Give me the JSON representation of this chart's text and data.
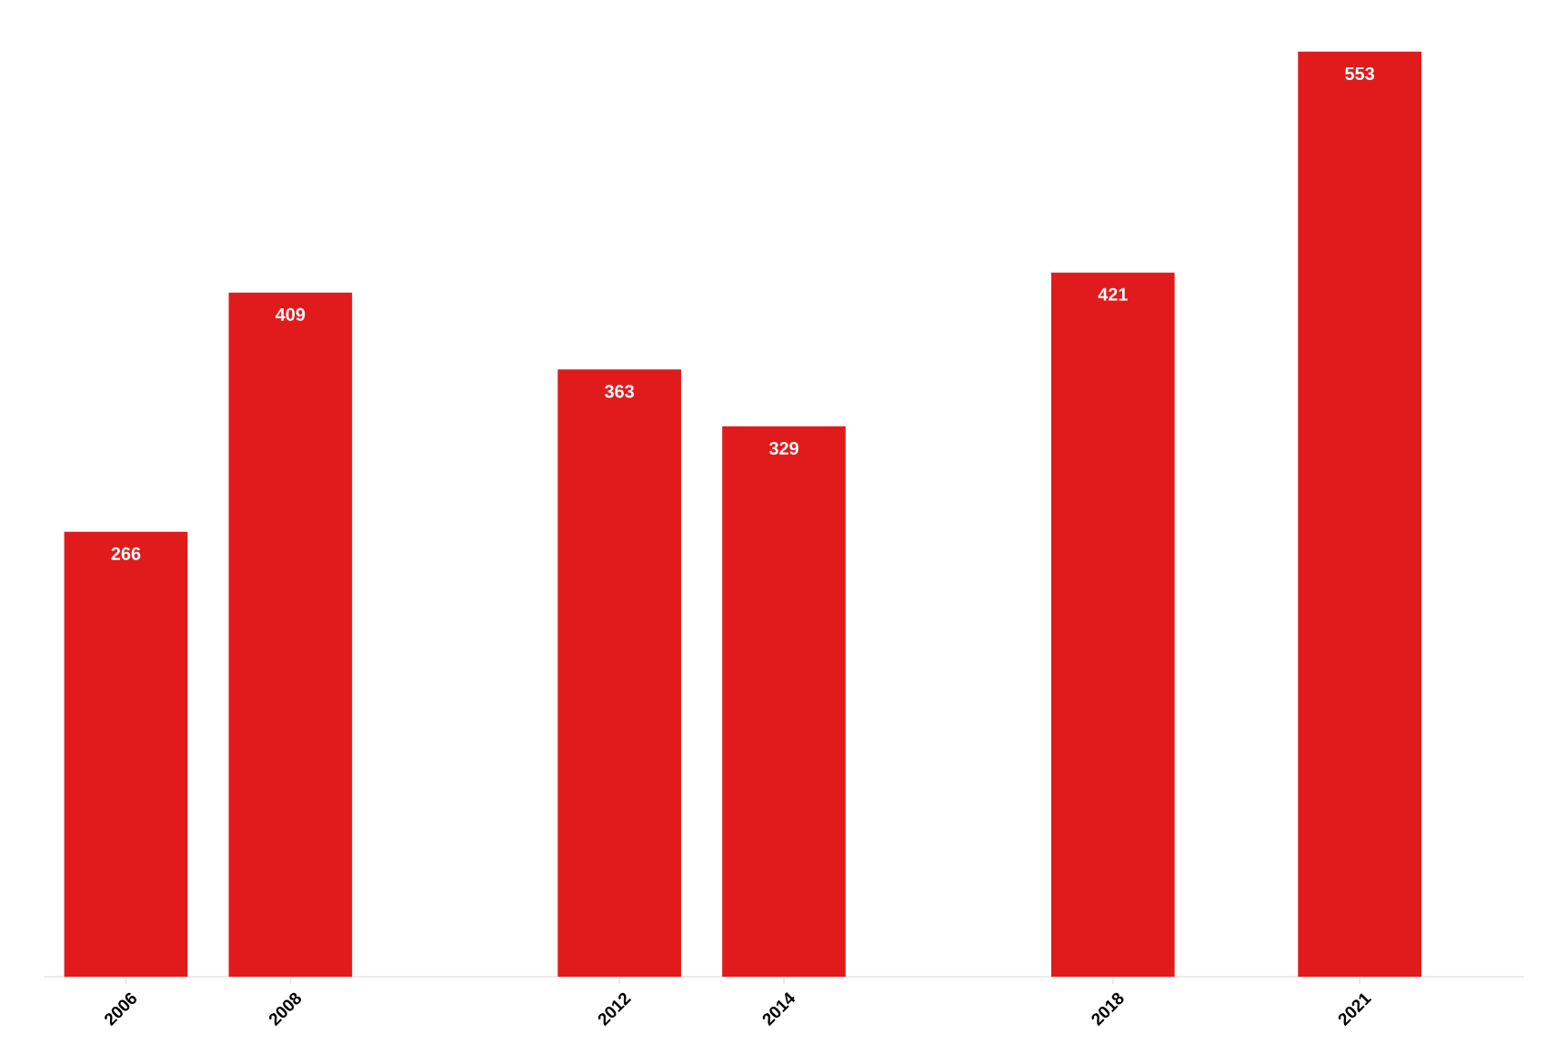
{
  "chart_data": {
    "type": "bar",
    "x": [
      2006,
      2008,
      2012,
      2014,
      2018,
      2021
    ],
    "values": [
      266,
      409,
      363,
      329,
      421,
      553
    ],
    "color": "#e11b1b",
    "data_labels": true,
    "xlim": [
      2005,
      2023
    ],
    "xticks": [
      2006,
      2008,
      2012,
      2014,
      2018,
      2021
    ],
    "tick_labels": "x"
  }
}
